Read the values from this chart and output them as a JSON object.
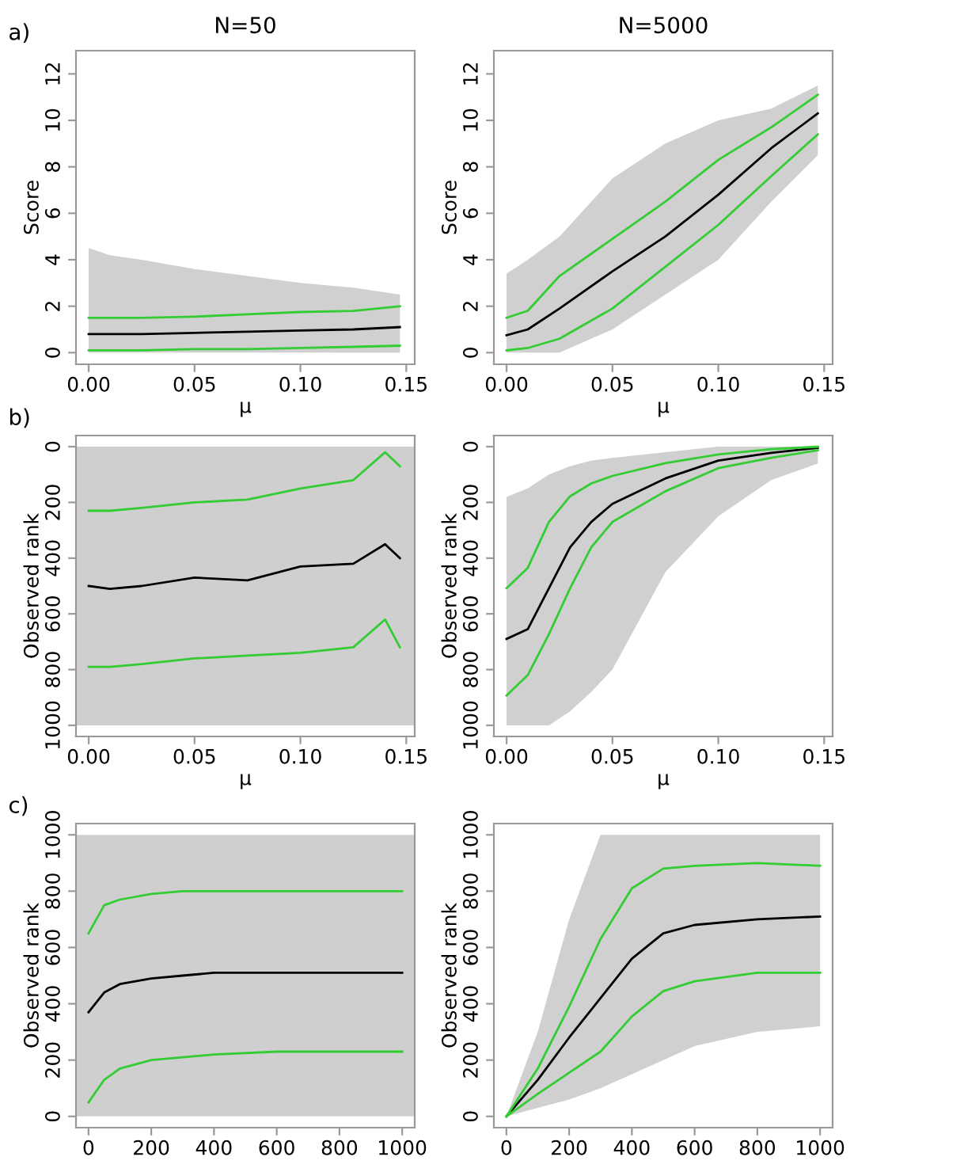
{
  "chart_data": [
    {
      "type": "line",
      "title": "N=50",
      "xlabel": "μ",
      "ylabel": "Score",
      "annotations": [
        "a)"
      ],
      "x": [
        0,
        0.01,
        0.025,
        0.05,
        0.075,
        0.1,
        0.125,
        0.147
      ],
      "xlim": [
        -0.006,
        0.154
      ],
      "ylim": [
        -0.5,
        13
      ],
      "xticks": [
        {
          "value": 0,
          "label": "0.00"
        },
        {
          "value": 0.05,
          "label": "0.05"
        },
        {
          "value": 0.1,
          "label": "0.10"
        },
        {
          "value": 0.15,
          "label": "0.15"
        }
      ],
      "yticks": [
        0,
        2,
        4,
        6,
        8,
        10,
        12
      ],
      "series": [
        {
          "color": "#000000",
          "values": [
            0.8,
            0.8,
            0.8,
            0.85,
            0.9,
            0.95,
            1.0,
            1.1
          ],
          "lower": [
            0,
            0,
            0,
            0,
            0,
            0,
            0,
            0
          ],
          "upper": [
            4.5,
            4.2,
            4.0,
            3.6,
            3.3,
            3.0,
            2.8,
            2.5
          ]
        },
        {
          "color": "#33cc33",
          "values": [
            1.5,
            1.5,
            1.5,
            1.55,
            1.65,
            1.75,
            1.8,
            2.0
          ]
        },
        {
          "color": "#33cc33",
          "values": [
            0.1,
            0.1,
            0.1,
            0.15,
            0.15,
            0.2,
            0.25,
            0.3
          ]
        }
      ]
    },
    {
      "type": "line",
      "title": "N=5000",
      "xlabel": "μ",
      "ylabel": "Score",
      "x": [
        0,
        0.01,
        0.025,
        0.05,
        0.075,
        0.1,
        0.125,
        0.147
      ],
      "xlim": [
        -0.006,
        0.154
      ],
      "ylim": [
        -0.5,
        13
      ],
      "xticks": [
        {
          "value": 0,
          "label": "0.00"
        },
        {
          "value": 0.05,
          "label": "0.05"
        },
        {
          "value": 0.1,
          "label": "0.10"
        },
        {
          "value": 0.15,
          "label": "0.15"
        }
      ],
      "yticks": [
        0,
        2,
        4,
        6,
        8,
        10,
        12
      ],
      "series": [
        {
          "color": "#000000",
          "values": [
            0.75,
            1.0,
            1.9,
            3.5,
            5.0,
            6.8,
            8.8,
            10.3
          ],
          "lower": [
            0,
            0,
            0,
            1,
            2.5,
            4,
            6.5,
            8.5
          ],
          "upper": [
            3.4,
            4,
            5,
            7.5,
            9,
            10,
            10.5,
            11.5
          ]
        },
        {
          "color": "#33cc33",
          "values": [
            1.5,
            1.8,
            3.3,
            4.9,
            6.5,
            8.3,
            9.7,
            11.1
          ]
        },
        {
          "color": "#33cc33",
          "values": [
            0.1,
            0.2,
            0.6,
            1.9,
            3.7,
            5.5,
            7.6,
            9.4
          ]
        }
      ]
    },
    {
      "type": "line",
      "xlabel": "μ",
      "ylabel": "Observed rank",
      "annotations": [
        "b)"
      ],
      "bands": [
        {
          "axis": "y",
          "from": 0,
          "to": 1000,
          "color": "#cfcfcf"
        }
      ],
      "x": [
        0,
        0.01,
        0.025,
        0.05,
        0.075,
        0.1,
        0.125,
        0.14,
        0.147
      ],
      "xlim": [
        -0.006,
        0.154
      ],
      "ylim": [
        1040,
        -40
      ],
      "xticks": [
        {
          "value": 0,
          "label": "0.00"
        },
        {
          "value": 0.05,
          "label": "0.05"
        },
        {
          "value": 0.1,
          "label": "0.10"
        },
        {
          "value": 0.15,
          "label": "0.15"
        }
      ],
      "yticks": [
        0,
        200,
        400,
        600,
        800,
        1000
      ],
      "series": [
        {
          "color": "#000000",
          "values": [
            500,
            510,
            500,
            470,
            480,
            430,
            420,
            350,
            400
          ]
        },
        {
          "color": "#33cc33",
          "values": [
            230,
            230,
            220,
            200,
            190,
            150,
            120,
            20,
            70
          ]
        },
        {
          "color": "#33cc33",
          "values": [
            790,
            790,
            780,
            760,
            750,
            740,
            720,
            620,
            720
          ]
        }
      ]
    },
    {
      "type": "line",
      "xlabel": "μ",
      "ylabel": "Observed rank",
      "x": [
        0,
        0.01,
        0.02,
        0.03,
        0.04,
        0.05,
        0.075,
        0.1,
        0.125,
        0.147
      ],
      "xlim": [
        -0.006,
        0.154
      ],
      "ylim": [
        1040,
        -40
      ],
      "xticks": [
        {
          "value": 0,
          "label": "0.00"
        },
        {
          "value": 0.05,
          "label": "0.05"
        },
        {
          "value": 0.1,
          "label": "0.10"
        },
        {
          "value": 0.15,
          "label": "0.15"
        }
      ],
      "yticks": [
        0,
        200,
        400,
        600,
        800,
        1000
      ],
      "series": [
        {
          "color": "#000000",
          "values": [
            690,
            655,
            508,
            361,
            270,
            205,
            114,
            50,
            22,
            4
          ],
          "lower": [
            180,
            150,
            100,
            70,
            50,
            40,
            20,
            0,
            0,
            0
          ],
          "upper": [
            1000,
            1000,
            1000,
            950,
            880,
            800,
            450,
            250,
            120,
            60
          ]
        },
        {
          "color": "#33cc33",
          "values": [
            508,
            435,
            270,
            178,
            132,
            105,
            59,
            28,
            9,
            0
          ]
        },
        {
          "color": "#33cc33",
          "values": [
            893,
            820,
            673,
            508,
            361,
            270,
            160,
            77,
            40,
            13
          ]
        }
      ]
    },
    {
      "type": "line",
      "ylabel": "Observed rank",
      "annotations": [
        "c)"
      ],
      "bands": [
        {
          "axis": "y",
          "from": 0,
          "to": 1000,
          "color": "#cfcfcf"
        }
      ],
      "x": [
        0,
        50,
        100,
        200,
        300,
        400,
        600,
        800,
        1000
      ],
      "xlim": [
        -40,
        1040
      ],
      "ylim": [
        -40,
        1040
      ],
      "xticks": [
        0,
        200,
        400,
        600,
        800,
        1000
      ],
      "yticks": [
        0,
        200,
        400,
        600,
        800,
        1000
      ],
      "series": [
        {
          "color": "#000000",
          "values": [
            370,
            440,
            470,
            490,
            500,
            510,
            510,
            510,
            510
          ]
        },
        {
          "color": "#33cc33",
          "values": [
            650,
            750,
            770,
            790,
            800,
            800,
            800,
            800,
            800
          ]
        },
        {
          "color": "#33cc33",
          "values": [
            50,
            130,
            170,
            200,
            210,
            220,
            230,
            230,
            230
          ]
        }
      ]
    },
    {
      "type": "line",
      "ylabel": "Observed rank",
      "x": [
        0,
        100,
        200,
        300,
        400,
        500,
        600,
        800,
        1000
      ],
      "xlim": [
        -40,
        1040
      ],
      "ylim": [
        -40,
        1040
      ],
      "xticks": [
        0,
        200,
        400,
        600,
        800,
        1000
      ],
      "yticks": [
        0,
        200,
        400,
        600,
        800,
        1000
      ],
      "series": [
        {
          "color": "#000000",
          "values": [
            0,
            130,
            280,
            420,
            560,
            650,
            680,
            700,
            710
          ],
          "lower": [
            0,
            30,
            60,
            100,
            150,
            200,
            250,
            300,
            320
          ],
          "upper": [
            0,
            300,
            700,
            1000,
            1000,
            1000,
            1000,
            1000,
            1000
          ]
        },
        {
          "color": "#33cc33",
          "values": [
            0,
            170,
            390,
            630,
            810,
            880,
            890,
            900,
            890
          ]
        },
        {
          "color": "#33cc33",
          "values": [
            0,
            80,
            155,
            230,
            355,
            445,
            480,
            510,
            510
          ]
        }
      ]
    }
  ]
}
